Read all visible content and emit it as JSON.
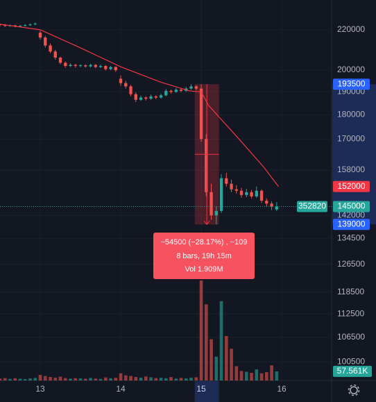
{
  "chart_data": {
    "type": "candlestick",
    "log_scale": true,
    "grid": true,
    "ylim": [
      96200,
      236000
    ],
    "yticks": [
      220000,
      200000,
      190000,
      180000,
      170000,
      158000,
      142000,
      134500,
      126500,
      118500,
      112500,
      106500,
      100500
    ],
    "xlim": [
      12.5,
      16.62
    ],
    "xticks": [
      13,
      14,
      15,
      16
    ],
    "highlighted_xtick": 15,
    "up_color": "#26a69a",
    "down_color": "#ef5350",
    "x": [
      12.5,
      12.5625,
      12.625,
      12.6875,
      12.75,
      12.8125,
      12.875,
      12.9375,
      13.0,
      13.0625,
      13.125,
      13.1875,
      13.25,
      13.3125,
      13.375,
      13.4375,
      13.5,
      13.5625,
      13.625,
      13.6875,
      13.75,
      13.8125,
      13.875,
      13.9375,
      14.0,
      14.0625,
      14.125,
      14.1875,
      14.25,
      14.3125,
      14.375,
      14.4375,
      14.5,
      14.5625,
      14.625,
      14.6875,
      14.75,
      14.8125,
      14.875,
      14.9375,
      15.0,
      15.0625,
      15.125,
      15.1875,
      15.25,
      15.3125,
      15.375,
      15.4375,
      15.5,
      15.5625,
      15.625,
      15.6875,
      15.75,
      15.8125,
      15.875,
      15.9375
    ],
    "open": [
      222800,
      222500,
      222000,
      222300,
      221800,
      222000,
      222400,
      222800,
      218500,
      216000,
      212000,
      209000,
      206000,
      203500,
      202000,
      202500,
      202000,
      202300,
      201800,
      202500,
      201500,
      202000,
      200500,
      201500,
      196000,
      194000,
      192500,
      189000,
      186500,
      187500,
      187000,
      188000,
      187500,
      188500,
      190500,
      190000,
      191000,
      190500,
      191500,
      192500,
      191500,
      170000,
      150000,
      142000,
      143500,
      155000,
      153000,
      151000,
      150500,
      149000,
      150000,
      148500,
      150500,
      147000,
      146000,
      144000
    ],
    "high": [
      223200,
      223000,
      222800,
      222600,
      222500,
      222900,
      223300,
      223800,
      219500,
      216800,
      213000,
      209800,
      206500,
      204200,
      203200,
      203000,
      202900,
      202800,
      203000,
      202900,
      202600,
      202400,
      202000,
      201900,
      197500,
      195000,
      193200,
      189800,
      188300,
      188000,
      188800,
      188500,
      189200,
      191300,
      191000,
      191800,
      191500,
      192300,
      193500,
      193000,
      193500,
      172000,
      153000,
      145000,
      156500,
      157000,
      154500,
      152500,
      151500,
      151200,
      150800,
      152000,
      151000,
      147800,
      146800,
      146500
    ],
    "low": [
      221800,
      221500,
      221500,
      221200,
      221400,
      221700,
      222000,
      222400,
      215000,
      211000,
      208200,
      205000,
      202800,
      201200,
      201500,
      201200,
      201400,
      201200,
      201300,
      200900,
      201000,
      199800,
      200000,
      199200,
      192800,
      191500,
      188000,
      185500,
      186000,
      186200,
      186500,
      186800,
      187000,
      188000,
      189300,
      189600,
      189800,
      190000,
      191000,
      190800,
      169000,
      148500,
      140500,
      139000,
      142800,
      152000,
      150000,
      149500,
      148000,
      148200,
      147800,
      148000,
      146200,
      145000,
      143800,
      143500
    ],
    "close": [
      222500,
      222000,
      222300,
      221800,
      222000,
      222400,
      222800,
      223200,
      216000,
      212000,
      209000,
      206000,
      203500,
      202000,
      202500,
      202000,
      202300,
      201800,
      202500,
      201500,
      202000,
      200500,
      201500,
      200000,
      194000,
      192500,
      189000,
      186500,
      187500,
      187000,
      188000,
      187500,
      188500,
      190500,
      190000,
      191000,
      190500,
      191500,
      192500,
      191500,
      170000,
      150000,
      142000,
      143500,
      155000,
      153000,
      151000,
      150500,
      149000,
      150000,
      148500,
      150500,
      147000,
      146000,
      145000,
      145000
    ],
    "volume": [
      12000,
      15000,
      10000,
      14000,
      11000,
      9000,
      13000,
      16000,
      35000,
      28000,
      22000,
      18000,
      24000,
      15000,
      12000,
      14000,
      13000,
      11000,
      16000,
      12000,
      10000,
      19000,
      14000,
      17000,
      45000,
      32000,
      28000,
      22000,
      18000,
      25000,
      20000,
      15000,
      17000,
      14000,
      21000,
      12000,
      16000,
      13000,
      18000,
      20000,
      630000,
      480000,
      260000,
      150000,
      500000,
      280000,
      200000,
      90000,
      60000,
      55000,
      48000,
      70000,
      45000,
      52000,
      95000,
      57561
    ],
    "volume_ylim": [
      0,
      700000
    ],
    "last_volume_label": "57.561K",
    "ma": {
      "color": "#f23645",
      "x": [
        12.5,
        13.0,
        13.5,
        14.0,
        14.5,
        14.85,
        15.0,
        15.09,
        15.47,
        15.78,
        15.96
      ],
      "values": [
        222900,
        220000,
        210800,
        201600,
        194400,
        190500,
        190000,
        184100,
        170000,
        159000,
        152000
      ]
    },
    "last_price": 145000,
    "countdown": 352820,
    "measure": {
      "high": 193500,
      "low": 139000,
      "x_start": 14.92,
      "x_end": 15.22,
      "change": "−54500 (−28.17%) , −109",
      "bars": "8 bars, 19h 15m",
      "volume": "Vol 1.909M"
    }
  }
}
